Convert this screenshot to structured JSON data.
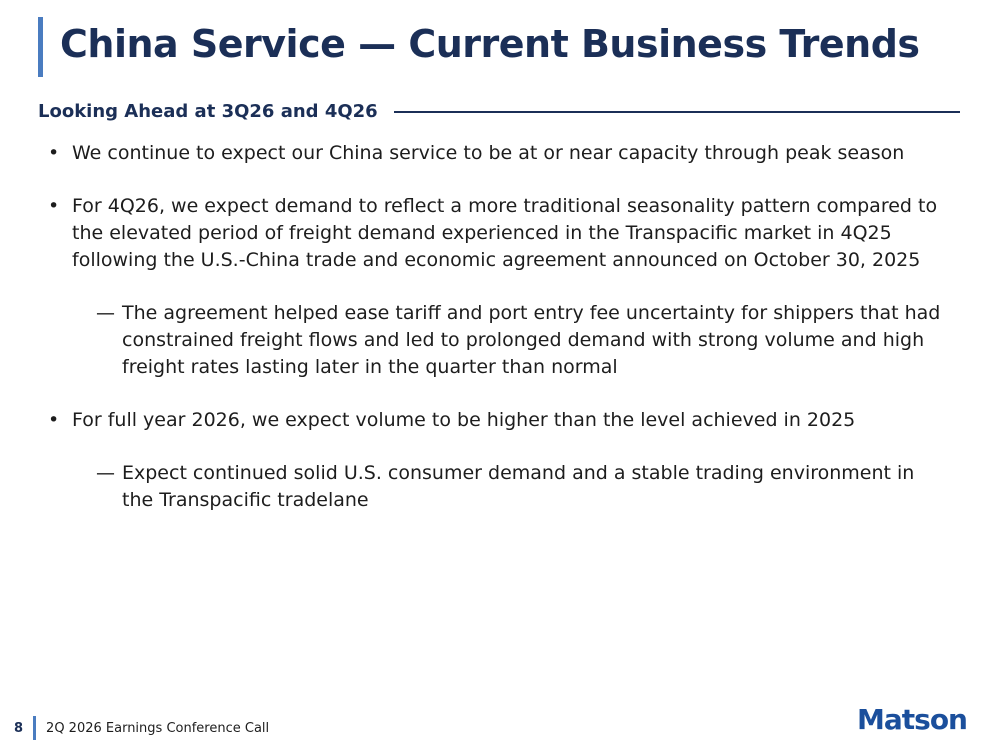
{
  "header": {
    "title": "China Service — Current Business Trends"
  },
  "section": {
    "heading": "Looking Ahead at 3Q26 and 4Q26"
  },
  "bullets": [
    {
      "text": "We continue to expect our China service to be at or near capacity through peak season",
      "subs": []
    },
    {
      "text": "For 4Q26, we expect demand to reflect a more traditional seasonality pattern compared to the elevated period of freight demand experienced in the Transpacific market in 4Q25 following the U.S.-China trade and economic agreement announced on October 30, 2025",
      "subs": [
        "The agreement helped ease tariff and port entry fee uncertainty for shippers that had constrained freight flows and led to prolonged demand with strong volume and high freight rates lasting later in the quarter than normal"
      ]
    },
    {
      "text": "For full year 2026, we expect volume to be higher than the level achieved in 2025",
      "subs": [
        "Expect continued solid U.S. consumer demand and a stable trading environment in the Transpacific tradelane"
      ]
    }
  ],
  "footer": {
    "page": "8",
    "event": "2Q 2026 Earnings Conference Call",
    "logo": "Matson"
  }
}
